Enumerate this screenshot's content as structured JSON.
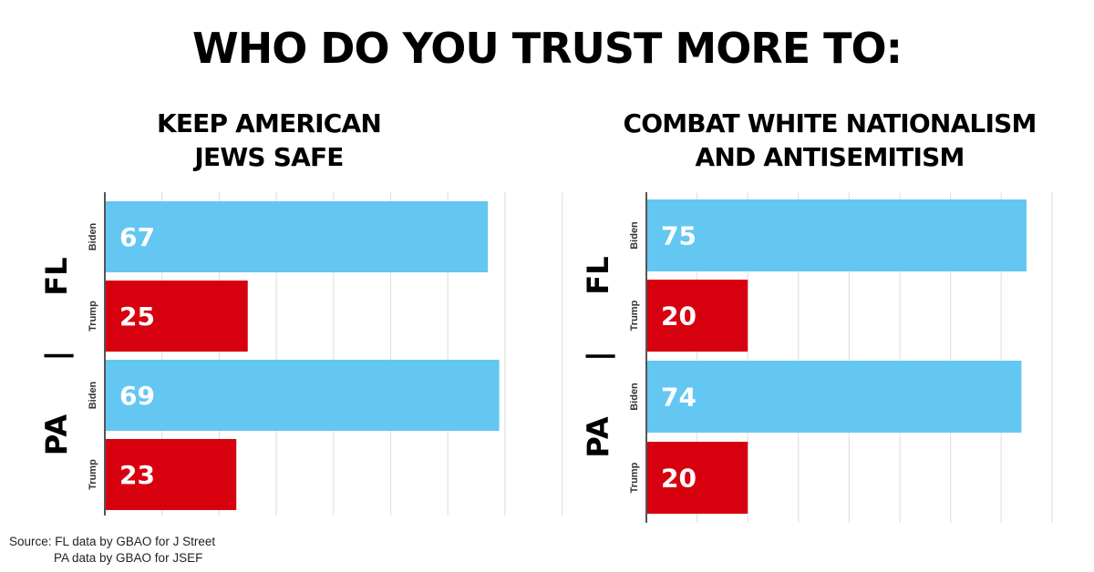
{
  "title": "WHO DO YOU TRUST MORE TO:",
  "colors": {
    "biden": "#63c7f1",
    "trump": "#d7000f",
    "grid": "#e2e2e2",
    "axis": "#555555"
  },
  "source": {
    "line1": "Source: FL data by GBAO for J Street",
    "line2": "PA data by GBAO for JSEF"
  },
  "chart_data": [
    {
      "type": "bar",
      "orientation": "horizontal",
      "title_lines": [
        "KEEP AMERICAN",
        "JEWS SAFE"
      ],
      "groups": [
        "FL",
        "PA"
      ],
      "separator": "|",
      "bars": [
        {
          "group": "FL",
          "candidate": "Biden",
          "value": 67
        },
        {
          "group": "FL",
          "candidate": "Trump",
          "value": 25
        },
        {
          "group": "PA",
          "candidate": "Biden",
          "value": 69
        },
        {
          "group": "PA",
          "candidate": "Trump",
          "value": 23
        }
      ],
      "xlim": [
        0,
        70
      ],
      "grid_step": 10,
      "grid": true
    },
    {
      "type": "bar",
      "orientation": "horizontal",
      "title_lines": [
        "COMBAT WHITE NATIONALISM",
        "AND ANTISEMITISM"
      ],
      "groups": [
        "FL",
        "PA"
      ],
      "separator": "|",
      "bars": [
        {
          "group": "FL",
          "candidate": "Biden",
          "value": 75
        },
        {
          "group": "FL",
          "candidate": "Trump",
          "value": 20
        },
        {
          "group": "PA",
          "candidate": "Biden",
          "value": 74
        },
        {
          "group": "PA",
          "candidate": "Trump",
          "value": 20
        }
      ],
      "xlim": [
        0,
        77
      ],
      "grid_step": 10,
      "grid": true
    }
  ]
}
